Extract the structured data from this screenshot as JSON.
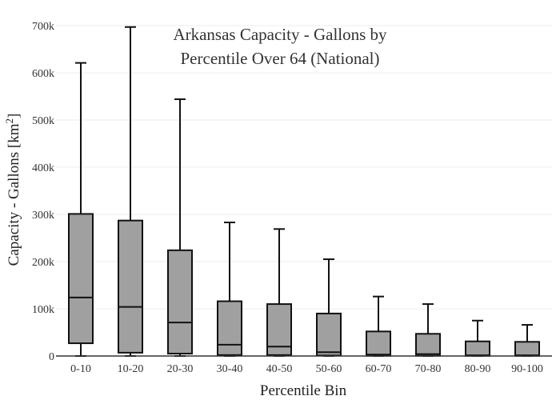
{
  "chart_data": {
    "type": "box",
    "title_lines": [
      "Arkansas Capacity - Gallons by",
      "Percentile Over 64 (National)"
    ],
    "xlabel": "Percentile Bin",
    "ylabel_main": "Capacity - Gallons  [km",
    "ylabel_sup": "2",
    "ylabel_end": "]",
    "ylim": [
      0,
      700000
    ],
    "y_ticks": [
      0,
      100000,
      200000,
      300000,
      400000,
      500000,
      600000,
      700000
    ],
    "y_tick_labels": [
      "0",
      "100k",
      "200k",
      "300k",
      "400k",
      "500k",
      "600k",
      "700k"
    ],
    "grid": true,
    "colors": {
      "box_fill": "#a0a0a0",
      "box_stroke": "#111111"
    },
    "categories": [
      "0-10",
      "10-20",
      "20-30",
      "30-40",
      "40-50",
      "50-60",
      "60-70",
      "70-80",
      "80-90",
      "90-100"
    ],
    "boxes": [
      {
        "category": "0-10",
        "min": 0,
        "q1": 27000,
        "median": 124000,
        "q3": 301000,
        "max": 621000
      },
      {
        "category": "10-20",
        "min": 0,
        "q1": 7000,
        "median": 104000,
        "q3": 287000,
        "max": 697000
      },
      {
        "category": "20-30",
        "min": 0,
        "q1": 5000,
        "median": 71000,
        "q3": 224000,
        "max": 544000
      },
      {
        "category": "30-40",
        "min": 0,
        "q1": 2000,
        "median": 24000,
        "q3": 116000,
        "max": 283000
      },
      {
        "category": "40-50",
        "min": 0,
        "q1": 2000,
        "median": 20000,
        "q3": 110000,
        "max": 269000
      },
      {
        "category": "50-60",
        "min": 0,
        "q1": 1000,
        "median": 8000,
        "q3": 90000,
        "max": 205000
      },
      {
        "category": "60-70",
        "min": 0,
        "q1": 500,
        "median": 3000,
        "q3": 52000,
        "max": 126000
      },
      {
        "category": "70-80",
        "min": 0,
        "q1": 500,
        "median": 4000,
        "q3": 47000,
        "max": 110000
      },
      {
        "category": "80-90",
        "min": 0,
        "q1": 300,
        "median": 1500,
        "q3": 31000,
        "max": 75000
      },
      {
        "category": "90-100",
        "min": 0,
        "q1": 300,
        "median": 1500,
        "q3": 30000,
        "max": 66000
      }
    ]
  }
}
